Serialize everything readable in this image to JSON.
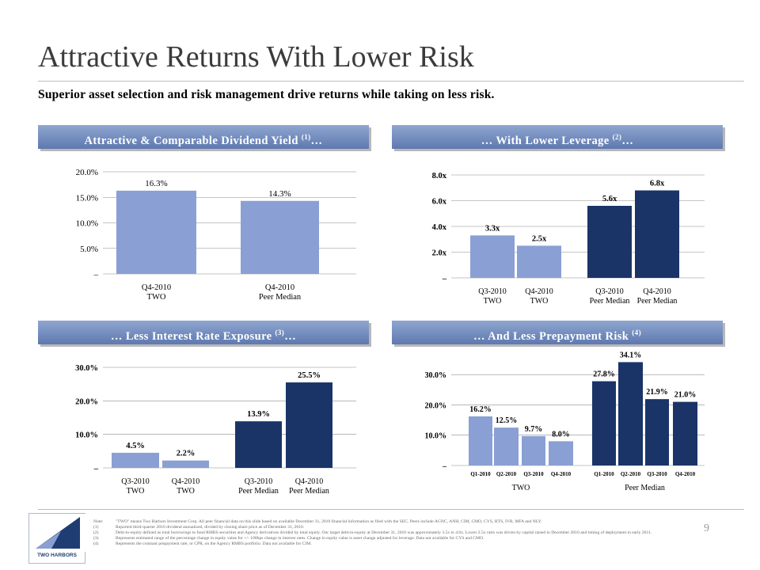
{
  "header": {
    "title": "Attractive Returns With Lower Risk",
    "subtitle": "Superior asset selection and risk management drive returns while taking on less risk."
  },
  "panels": [
    {
      "title": "Attractive & Comparable Dividend Yield ",
      "sup": "(1)",
      "suffix": "…"
    },
    {
      "title": "… With Lower Leverage ",
      "sup": "(2)",
      "suffix": "…"
    },
    {
      "title": "… Less Interest Rate Exposure ",
      "sup": "(3)",
      "suffix": "…"
    },
    {
      "title": "… And Less Prepayment Risk ",
      "sup": "(4)",
      "suffix": ""
    }
  ],
  "colors": {
    "light": "#8aa0d4",
    "dark": "#1a3468",
    "header_top": "#8fa6cf",
    "header_bottom": "#5e79b0"
  },
  "chart_data": [
    {
      "type": "bar",
      "categories": [
        [
          "Q4-2010",
          "TWO"
        ],
        [
          "Q4-2010",
          "Peer Median"
        ]
      ],
      "values": [
        16.3,
        14.3
      ],
      "labels": [
        "16.3%",
        "14.3%"
      ],
      "bar_colors": [
        "light",
        "light"
      ],
      "ylim": [
        0,
        20
      ],
      "yticks": [
        0,
        5,
        10,
        15,
        20
      ],
      "ytick_labels": [
        "–",
        "5.0%",
        "10.0%",
        "15.0%",
        "20.0%"
      ],
      "label_weight": "normal"
    },
    {
      "type": "bar",
      "categories": [
        [
          "Q3-2010",
          "TWO"
        ],
        [
          "Q4-2010",
          "TWO"
        ],
        [
          "Q3-2010",
          "Peer Median"
        ],
        [
          "Q4-2010",
          "Peer Median"
        ]
      ],
      "values": [
        3.3,
        2.5,
        5.6,
        6.8
      ],
      "labels": [
        "3.3x",
        "2.5x",
        "5.6x",
        "6.8x"
      ],
      "bar_colors": [
        "light",
        "light",
        "dark",
        "dark"
      ],
      "ylim": [
        0,
        8
      ],
      "yticks": [
        0,
        2,
        4,
        6,
        8
      ],
      "ytick_labels": [
        "–",
        "2.0x",
        "4.0x",
        "6.0x",
        "8.0x"
      ],
      "label_weight": "bold"
    },
    {
      "type": "bar",
      "categories": [
        [
          "Q3-2010",
          "TWO"
        ],
        [
          "Q4-2010",
          "TWO"
        ],
        [
          "Q3-2010",
          "Peer Median"
        ],
        [
          "Q4-2010",
          "Peer Median"
        ]
      ],
      "values": [
        4.5,
        2.2,
        13.9,
        25.5
      ],
      "labels": [
        "4.5%",
        "2.2%",
        "13.9%",
        "25.5%"
      ],
      "bar_colors": [
        "light",
        "light",
        "dark",
        "dark"
      ],
      "ylim": [
        0,
        30
      ],
      "yticks": [
        0,
        10,
        20,
        30
      ],
      "ytick_labels": [
        "–",
        "10.0%",
        "20.0%",
        "30.0%"
      ],
      "label_weight": "bold"
    },
    {
      "type": "bar",
      "categories": [
        "Q1-2010",
        "Q2-2010",
        "Q3-2010",
        "Q4-2010",
        "Q1-2010",
        "Q2-2010",
        "Q3-2010",
        "Q4-2010"
      ],
      "groups": [
        "TWO",
        "Peer Median"
      ],
      "values": [
        16.2,
        12.5,
        9.7,
        8.0,
        27.8,
        34.1,
        21.9,
        21.0
      ],
      "labels": [
        "16.2%",
        "12.5%",
        "9.7%",
        "8.0%",
        "27.8%",
        "34.1%",
        "21.9%",
        "21.0%"
      ],
      "bar_colors": [
        "light",
        "light",
        "light",
        "light",
        "dark",
        "dark",
        "dark",
        "dark"
      ],
      "ylim": [
        0,
        35
      ],
      "yticks": [
        0,
        10,
        20,
        30
      ],
      "ytick_labels": [
        "–",
        "10.0%",
        "20.0%",
        "30.0%"
      ],
      "label_weight": "bold"
    }
  ],
  "footer": {
    "logo_text": "TWO HARBORS",
    "page_number": "9",
    "notes": [
      {
        "key": "Note:",
        "text": "\"TWO\" means Two Harbors Investment Corp. All peer financial data on this slide based on available December 31, 2010 financial information as filed with the SEC. Peers include AGNC, ANH, CIM, CMO, CYS, HTS, IVR, MFA and NLY."
      },
      {
        "key": "(1)",
        "text": "Reported third-quarter 2010 dividend annualized, divided by closing share price as of December 31, 2010."
      },
      {
        "key": "(2)",
        "text": "Debt-to-equity defined as total borrowings to fund RMBS securities and Agency derivatives divided by total equity. Our target debt-to-equity at December 31, 2010 was approximately 3.5x to 4.0x. Lower 2.5x ratio was driven by capital raised in December 2010 and timing of deployment in early 2011."
      },
      {
        "key": "(3)",
        "text": "Represents estimated range of the percentage change in equity value for +/- 100bps change in interest rates. Change in equity value is asset change adjusted for leverage. Data not available for CYS and CMO."
      },
      {
        "key": "(4)",
        "text": "Represents the constant prepayment rate, or CPR, on the Agency RMBS portfolio. Data not available for CIM."
      }
    ]
  }
}
